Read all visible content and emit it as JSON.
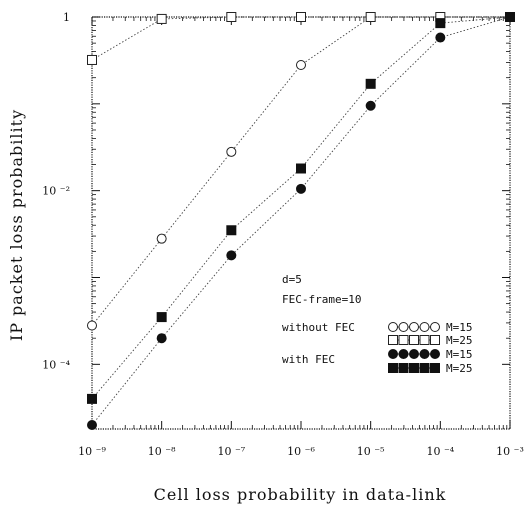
{
  "chart_data": {
    "type": "line",
    "xlabel": "Cell loss probability in data-link",
    "ylabel": "IP packet loss probability",
    "x_scale": "log",
    "y_scale": "log",
    "xlim": [
      1e-09,
      0.001
    ],
    "ylim": [
      1.8e-05,
      1.0
    ],
    "x_tick_values": [
      1e-09,
      1e-08,
      1e-07,
      1e-06,
      1e-05,
      0.0001,
      0.001
    ],
    "x_tick_labels": [
      "10 ⁻⁹",
      "10 ⁻⁸",
      "10 ⁻⁷",
      "10 ⁻⁶",
      "10 ⁻⁵",
      "10 ⁻⁴",
      "10 ⁻³"
    ],
    "y_tick_values": [
      1.0,
      0.01,
      0.0001
    ],
    "y_tick_labels": [
      "1",
      "10 ⁻²",
      "10 ⁻⁴"
    ],
    "annotations": [
      "d=5",
      "FEC-frame=10",
      "without FEC",
      "with FEC"
    ],
    "series": [
      {
        "name": "M=15",
        "group": "without FEC",
        "marker": "open-circle",
        "x": [
          1e-09,
          1e-08,
          1e-07,
          1e-06,
          1e-05,
          0.0001,
          0.001
        ],
        "y": [
          0.00028,
          0.0028,
          0.028,
          0.28,
          1.0,
          1.0,
          1.0
        ]
      },
      {
        "name": "M=25",
        "group": "without FEC",
        "marker": "open-square",
        "x": [
          1e-09,
          1e-08,
          1e-07,
          1e-06,
          1e-05,
          0.0001,
          0.001
        ],
        "y": [
          0.32,
          0.95,
          1.0,
          1.0,
          1.0,
          1.0,
          1.0
        ]
      },
      {
        "name": "M=15",
        "group": "with FEC",
        "marker": "filled-circle",
        "x": [
          1e-09,
          1e-08,
          1e-07,
          1e-06,
          1e-05,
          0.0001,
          0.001
        ],
        "y": [
          2e-05,
          0.0002,
          0.0018,
          0.0105,
          0.095,
          0.58,
          1.0
        ]
      },
      {
        "name": "M=25",
        "group": "with FEC",
        "marker": "filled-square",
        "x": [
          1e-09,
          1e-08,
          1e-07,
          1e-06,
          1e-05,
          0.0001,
          0.001
        ],
        "y": [
          4e-05,
          0.00035,
          0.0035,
          0.018,
          0.17,
          0.85,
          1.0
        ]
      }
    ]
  }
}
